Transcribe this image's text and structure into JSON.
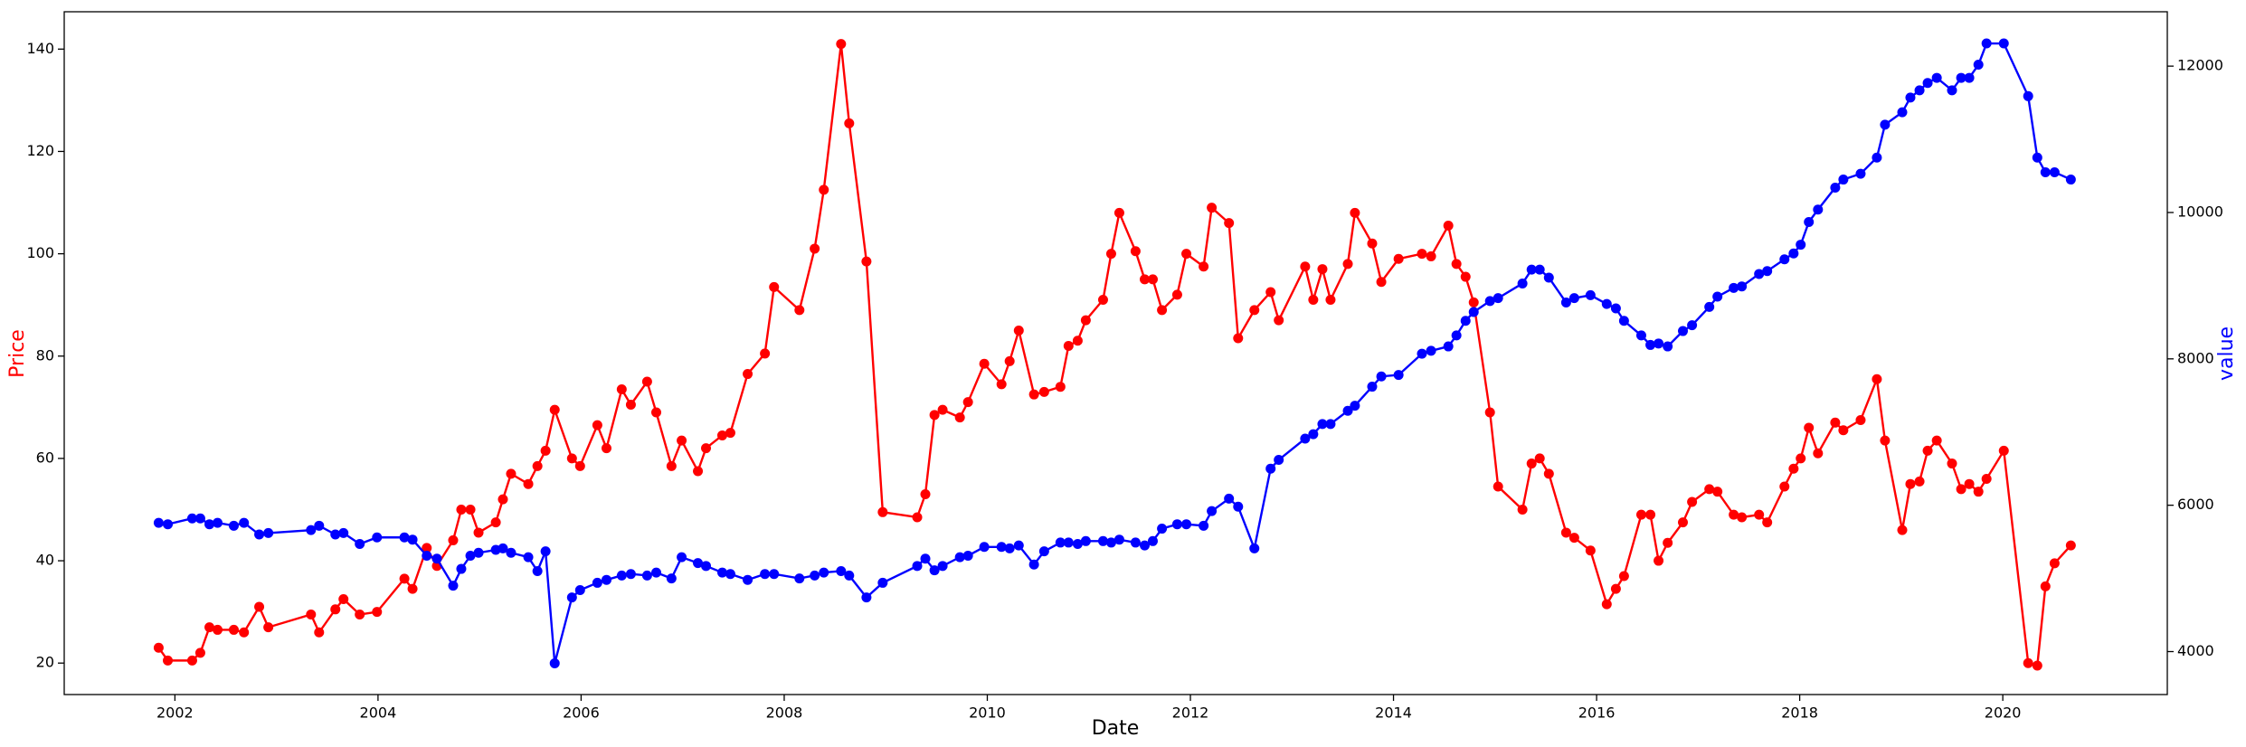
{
  "chart_data": {
    "type": "line",
    "xlabel": "Date",
    "ylabel": "Price",
    "y2label": "value",
    "x": [
      2001.84,
      2001.93,
      2002.17,
      2002.25,
      2002.34,
      2002.42,
      2002.58,
      2002.68,
      2002.83,
      2002.92,
      2003.34,
      2003.42,
      2003.58,
      2003.66,
      2003.82,
      2003.99,
      2004.26,
      2004.34,
      2004.48,
      2004.58,
      2004.74,
      2004.82,
      2004.91,
      2004.99,
      2005.16,
      2005.23,
      2005.31,
      2005.48,
      2005.57,
      2005.65,
      2005.74,
      2005.91,
      2005.99,
      2006.16,
      2006.25,
      2006.4,
      2006.49,
      2006.65,
      2006.74,
      2006.89,
      2006.99,
      2007.15,
      2007.23,
      2007.39,
      2007.47,
      2007.64,
      2007.81,
      2007.9,
      2008.15,
      2008.3,
      2008.39,
      2008.56,
      2008.64,
      2008.81,
      2008.97,
      2009.31,
      2009.39,
      2009.48,
      2009.56,
      2009.73,
      2009.81,
      2009.97,
      2010.14,
      2010.22,
      2010.31,
      2010.46,
      2010.56,
      2010.72,
      2010.8,
      2010.89,
      2010.97,
      2011.14,
      2011.22,
      2011.3,
      2011.46,
      2011.55,
      2011.63,
      2011.72,
      2011.87,
      2011.96,
      2012.13,
      2012.21,
      2012.38,
      2012.47,
      2012.63,
      2012.79,
      2012.87,
      2013.13,
      2013.21,
      2013.3,
      2013.38,
      2013.55,
      2013.62,
      2013.79,
      2013.88,
      2014.05,
      2014.28,
      2014.37,
      2014.54,
      2014.62,
      2014.71,
      2014.79,
      2014.95,
      2015.03,
      2015.27,
      2015.36,
      2015.44,
      2015.53,
      2015.7,
      2015.78,
      2015.94,
      2016.1,
      2016.19,
      2016.27,
      2016.44,
      2016.53,
      2016.61,
      2016.7,
      2016.85,
      2016.94,
      2017.11,
      2017.19,
      2017.35,
      2017.43,
      2017.6,
      2017.68,
      2017.85,
      2017.94,
      2018.01,
      2018.09,
      2018.18,
      2018.35,
      2018.43,
      2018.6,
      2018.76,
      2018.84,
      2019.01,
      2019.09,
      2019.18,
      2019.26,
      2019.35,
      2019.5,
      2019.59,
      2019.67,
      2019.76,
      2019.84,
      2020.01,
      2020.25,
      2020.34,
      2020.42,
      2020.51,
      2020.67
    ],
    "series": [
      {
        "color": "#ff0000",
        "axis": "y",
        "values": [
          23,
          20.5,
          20.5,
          22,
          27,
          26.5,
          26.5,
          26,
          31,
          27,
          29.5,
          26,
          30.5,
          32.5,
          29.5,
          30,
          36.5,
          34.5,
          42.5,
          39,
          44,
          50,
          50,
          45.5,
          47.5,
          52,
          57,
          55,
          58.5,
          61.5,
          69.5,
          60,
          58.5,
          66.5,
          62,
          73.5,
          70.5,
          75,
          69,
          58.5,
          63.5,
          57.5,
          62,
          64.5,
          65,
          76.5,
          80.5,
          93.5,
          89,
          101,
          112.5,
          141,
          125.5,
          98.5,
          49.5,
          48.5,
          53,
          68.5,
          69.5,
          68,
          71,
          78.5,
          74.5,
          79,
          85,
          72.5,
          73,
          74,
          82,
          83,
          87,
          91,
          100,
          108,
          100.5,
          95,
          95,
          89,
          92,
          100,
          97.5,
          109,
          106,
          83.5,
          89,
          92.5,
          87,
          97.5,
          91,
          97,
          91,
          98,
          108,
          102,
          94.5,
          99,
          100,
          99.5,
          105.5,
          98,
          95.5,
          90.5,
          69,
          54.5,
          50,
          59,
          60,
          57,
          45.5,
          44.5,
          42,
          31.5,
          34.5,
          37,
          49,
          49,
          40,
          43.5,
          47.5,
          51.5,
          54,
          53.5,
          49,
          48.5,
          49,
          47.5,
          54.5,
          58,
          60,
          66,
          61,
          67,
          65.5,
          67.5,
          75.5,
          63.5,
          46,
          55,
          55.5,
          61.5,
          63.5,
          59,
          54,
          55,
          53.5,
          56,
          61.5,
          20,
          19.5,
          35,
          39.5,
          43
        ]
      },
      {
        "color": "#0000ff",
        "axis": "y2",
        "values": [
          5760,
          5740,
          5820,
          5820,
          5740,
          5760,
          5720,
          5760,
          5600,
          5620,
          5660,
          5720,
          5600,
          5620,
          5470,
          5560,
          5560,
          5530,
          5310,
          5270,
          4900,
          5130,
          5310,
          5350,
          5390,
          5410,
          5350,
          5290,
          5100,
          5370,
          3840,
          4740,
          4840,
          4940,
          4980,
          5040,
          5060,
          5040,
          5080,
          5000,
          5290,
          5210,
          5170,
          5080,
          5060,
          4980,
          5060,
          5060,
          5000,
          5040,
          5080,
          5100,
          5040,
          4740,
          4940,
          5170,
          5270,
          5110,
          5170,
          5290,
          5310,
          5430,
          5430,
          5410,
          5450,
          5190,
          5370,
          5490,
          5490,
          5470,
          5510,
          5510,
          5490,
          5530,
          5490,
          5450,
          5510,
          5680,
          5740,
          5740,
          5720,
          5920,
          6090,
          5980,
          5410,
          6500,
          6620,
          6910,
          6970,
          7110,
          7110,
          7290,
          7360,
          7620,
          7760,
          7780,
          8070,
          8110,
          8170,
          8320,
          8520,
          8640,
          8790,
          8830,
          9030,
          9220,
          9220,
          9110,
          8770,
          8830,
          8870,
          8750,
          8690,
          8520,
          8320,
          8190,
          8210,
          8170,
          8380,
          8460,
          8710,
          8850,
          8970,
          8990,
          9160,
          9200,
          9360,
          9440,
          9560,
          9870,
          10040,
          10340,
          10450,
          10530,
          10750,
          11200,
          11370,
          11570,
          11670,
          11770,
          11840,
          11670,
          11840,
          11840,
          12020,
          12310,
          12310,
          11590,
          10750,
          10550,
          10550,
          10450
        ]
      }
    ],
    "xlim": [
      2000.91,
      2021.62
    ],
    "xticks": [
      2002,
      2004,
      2006,
      2008,
      2010,
      2012,
      2014,
      2016,
      2018,
      2020
    ],
    "ylim": [
      13.85,
      147.3
    ],
    "yticks": [
      20,
      40,
      60,
      80,
      100,
      120,
      140
    ],
    "y2lim": [
      3413,
      12743
    ],
    "y2ticks": [
      4000,
      6000,
      8000,
      10000,
      12000
    ],
    "grid": false
  }
}
